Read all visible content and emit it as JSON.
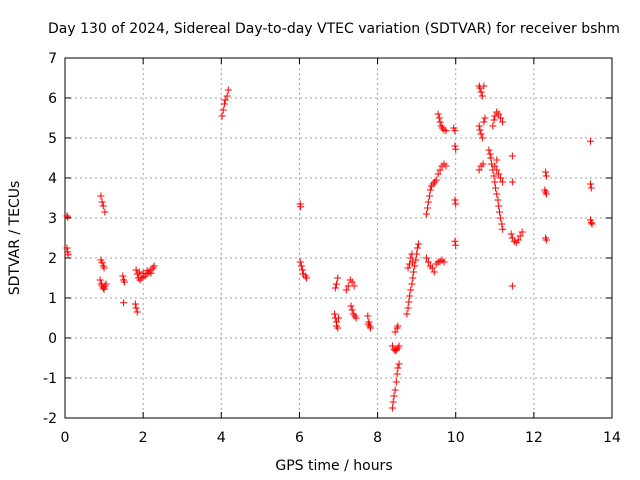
{
  "chart_data": {
    "type": "scatter",
    "title": "Day 130 of 2024, Sidereal Day-to-day VTEC variation (SDTVAR) for receiver bshm",
    "xlabel": "GPS time / hours",
    "ylabel": "SDTVAR / TECUs",
    "xlim": [
      0,
      14
    ],
    "ylim": [
      -2,
      7
    ],
    "xticks": [
      "0",
      "2",
      "4",
      "6",
      "8",
      "10",
      "12",
      "14"
    ],
    "yticks": [
      "-2",
      "-1",
      "0",
      "1",
      "2",
      "3",
      "4",
      "5",
      "6",
      "7"
    ],
    "grid": true,
    "marker": "+",
    "color": "#ff0000",
    "points": [
      [
        0.05,
        3.05
      ],
      [
        0.07,
        3.02
      ],
      [
        0.05,
        2.25
      ],
      [
        0.07,
        2.15
      ],
      [
        0.08,
        2.08
      ],
      [
        0.92,
        3.55
      ],
      [
        0.95,
        3.4
      ],
      [
        0.98,
        3.3
      ],
      [
        1.02,
        3.15
      ],
      [
        0.92,
        1.95
      ],
      [
        0.95,
        1.88
      ],
      [
        0.98,
        1.8
      ],
      [
        1.0,
        1.75
      ],
      [
        0.9,
        1.45
      ],
      [
        0.93,
        1.35
      ],
      [
        0.95,
        1.3
      ],
      [
        0.98,
        1.25
      ],
      [
        1.0,
        1.22
      ],
      [
        1.02,
        1.3
      ],
      [
        1.05,
        1.35
      ],
      [
        1.48,
        1.55
      ],
      [
        1.5,
        1.45
      ],
      [
        1.52,
        1.4
      ],
      [
        1.5,
        0.88
      ],
      [
        1.8,
        0.85
      ],
      [
        1.82,
        0.75
      ],
      [
        1.85,
        0.65
      ],
      [
        1.82,
        1.7
      ],
      [
        1.85,
        1.6
      ],
      [
        1.88,
        1.5
      ],
      [
        1.92,
        1.45
      ],
      [
        1.95,
        1.5
      ],
      [
        2.0,
        1.52
      ],
      [
        2.05,
        1.55
      ],
      [
        2.1,
        1.6
      ],
      [
        2.15,
        1.65
      ],
      [
        2.2,
        1.7
      ],
      [
        2.25,
        1.75
      ],
      [
        2.28,
        1.8
      ],
      [
        1.9,
        1.65
      ],
      [
        2.0,
        1.62
      ],
      [
        2.1,
        1.68
      ],
      [
        2.2,
        1.62
      ],
      [
        4.02,
        5.55
      ],
      [
        4.05,
        5.7
      ],
      [
        4.08,
        5.85
      ],
      [
        4.1,
        5.95
      ],
      [
        4.15,
        6.05
      ],
      [
        4.18,
        6.2
      ],
      [
        6.02,
        3.35
      ],
      [
        6.03,
        3.28
      ],
      [
        6.02,
        1.9
      ],
      [
        6.05,
        1.8
      ],
      [
        6.08,
        1.7
      ],
      [
        6.1,
        1.6
      ],
      [
        6.15,
        1.55
      ],
      [
        6.18,
        1.5
      ],
      [
        6.98,
        1.5
      ],
      [
        6.95,
        1.35
      ],
      [
        6.92,
        1.25
      ],
      [
        6.9,
        0.6
      ],
      [
        6.92,
        0.5
      ],
      [
        6.95,
        0.4
      ],
      [
        6.95,
        0.3
      ],
      [
        6.98,
        0.25
      ],
      [
        7.0,
        0.5
      ],
      [
        7.2,
        1.2
      ],
      [
        7.25,
        1.3
      ],
      [
        7.3,
        1.45
      ],
      [
        7.35,
        1.4
      ],
      [
        7.4,
        1.3
      ],
      [
        7.32,
        0.8
      ],
      [
        7.35,
        0.7
      ],
      [
        7.38,
        0.6
      ],
      [
        7.42,
        0.55
      ],
      [
        7.45,
        0.5
      ],
      [
        7.75,
        0.55
      ],
      [
        7.78,
        0.4
      ],
      [
        7.8,
        0.3
      ],
      [
        7.82,
        0.25
      ],
      [
        7.76,
        0.35
      ],
      [
        8.38,
        -1.75
      ],
      [
        8.4,
        -1.6
      ],
      [
        8.42,
        -1.45
      ],
      [
        8.45,
        -1.3
      ],
      [
        8.48,
        -1.1
      ],
      [
        8.5,
        -0.9
      ],
      [
        8.52,
        -0.75
      ],
      [
        8.55,
        -0.65
      ],
      [
        8.38,
        -0.2
      ],
      [
        8.42,
        -0.28
      ],
      [
        8.45,
        -0.32
      ],
      [
        8.48,
        -0.3
      ],
      [
        8.52,
        -0.25
      ],
      [
        8.55,
        -0.2
      ],
      [
        8.45,
        0.15
      ],
      [
        8.5,
        0.25
      ],
      [
        8.52,
        0.3
      ],
      [
        8.75,
        0.6
      ],
      [
        8.78,
        0.75
      ],
      [
        8.8,
        0.9
      ],
      [
        8.82,
        1.05
      ],
      [
        8.85,
        1.2
      ],
      [
        8.88,
        1.35
      ],
      [
        8.9,
        1.5
      ],
      [
        8.92,
        1.65
      ],
      [
        8.95,
        1.8
      ],
      [
        8.98,
        1.95
      ],
      [
        9.0,
        2.1
      ],
      [
        9.02,
        2.25
      ],
      [
        9.05,
        2.35
      ],
      [
        8.78,
        1.75
      ],
      [
        8.82,
        1.85
      ],
      [
        8.85,
        2.0
      ],
      [
        8.88,
        2.1
      ],
      [
        8.9,
        1.9
      ],
      [
        9.25,
        2.0
      ],
      [
        9.3,
        1.9
      ],
      [
        9.35,
        1.8
      ],
      [
        9.4,
        1.75
      ],
      [
        9.45,
        1.65
      ],
      [
        9.5,
        1.85
      ],
      [
        9.55,
        1.9
      ],
      [
        9.6,
        1.92
      ],
      [
        9.65,
        1.95
      ],
      [
        9.7,
        1.9
      ],
      [
        9.25,
        3.1
      ],
      [
        9.28,
        3.25
      ],
      [
        9.3,
        3.4
      ],
      [
        9.33,
        3.55
      ],
      [
        9.35,
        3.7
      ],
      [
        9.38,
        3.8
      ],
      [
        9.42,
        3.85
      ],
      [
        9.46,
        3.9
      ],
      [
        9.5,
        3.95
      ],
      [
        9.55,
        4.1
      ],
      [
        9.6,
        4.2
      ],
      [
        9.65,
        4.3
      ],
      [
        9.7,
        4.35
      ],
      [
        9.75,
        4.3
      ],
      [
        9.55,
        5.6
      ],
      [
        9.58,
        5.5
      ],
      [
        9.6,
        5.4
      ],
      [
        9.63,
        5.3
      ],
      [
        9.66,
        5.25
      ],
      [
        9.7,
        5.2
      ],
      [
        9.75,
        5.18
      ],
      [
        9.95,
        5.25
      ],
      [
        9.98,
        5.18
      ],
      [
        9.98,
        4.8
      ],
      [
        10.0,
        4.72
      ],
      [
        9.98,
        3.45
      ],
      [
        10.0,
        3.35
      ],
      [
        9.98,
        2.42
      ],
      [
        10.0,
        2.32
      ],
      [
        10.6,
        6.3
      ],
      [
        10.62,
        6.25
      ],
      [
        10.65,
        6.15
      ],
      [
        10.68,
        6.05
      ],
      [
        10.72,
        6.3
      ],
      [
        10.6,
        5.3
      ],
      [
        10.62,
        5.2
      ],
      [
        10.65,
        5.1
      ],
      [
        10.68,
        5.0
      ],
      [
        10.72,
        5.4
      ],
      [
        10.75,
        5.5
      ],
      [
        10.6,
        4.2
      ],
      [
        10.65,
        4.3
      ],
      [
        10.7,
        4.35
      ],
      [
        10.85,
        4.7
      ],
      [
        10.88,
        4.6
      ],
      [
        10.9,
        4.5
      ],
      [
        10.92,
        4.35
      ],
      [
        10.95,
        4.2
      ],
      [
        10.98,
        4.05
      ],
      [
        11.0,
        3.9
      ],
      [
        11.02,
        3.75
      ],
      [
        11.05,
        3.6
      ],
      [
        11.08,
        3.45
      ],
      [
        11.1,
        3.3
      ],
      [
        11.12,
        3.15
      ],
      [
        11.15,
        3.0
      ],
      [
        11.18,
        2.85
      ],
      [
        11.2,
        2.72
      ],
      [
        10.95,
        5.3
      ],
      [
        10.98,
        5.45
      ],
      [
        11.0,
        5.55
      ],
      [
        11.05,
        5.65
      ],
      [
        11.1,
        5.6
      ],
      [
        11.15,
        5.5
      ],
      [
        11.2,
        5.4
      ],
      [
        11.0,
        4.3
      ],
      [
        11.05,
        4.2
      ],
      [
        11.1,
        4.1
      ],
      [
        11.15,
        4.0
      ],
      [
        11.2,
        3.9
      ],
      [
        11.05,
        4.45
      ],
      [
        11.42,
        2.6
      ],
      [
        11.45,
        2.5
      ],
      [
        11.5,
        2.42
      ],
      [
        11.55,
        2.38
      ],
      [
        11.6,
        2.45
      ],
      [
        11.65,
        2.55
      ],
      [
        11.7,
        2.65
      ],
      [
        11.45,
        4.55
      ],
      [
        11.45,
        3.9
      ],
      [
        11.45,
        1.3
      ],
      [
        12.3,
        4.15
      ],
      [
        12.32,
        4.05
      ],
      [
        12.28,
        3.7
      ],
      [
        12.3,
        3.65
      ],
      [
        12.32,
        3.6
      ],
      [
        12.3,
        2.5
      ],
      [
        12.32,
        2.45
      ],
      [
        13.45,
        4.92
      ],
      [
        13.45,
        3.85
      ],
      [
        13.47,
        3.75
      ],
      [
        13.45,
        2.95
      ],
      [
        13.47,
        2.88
      ],
      [
        13.49,
        2.85
      ]
    ]
  }
}
